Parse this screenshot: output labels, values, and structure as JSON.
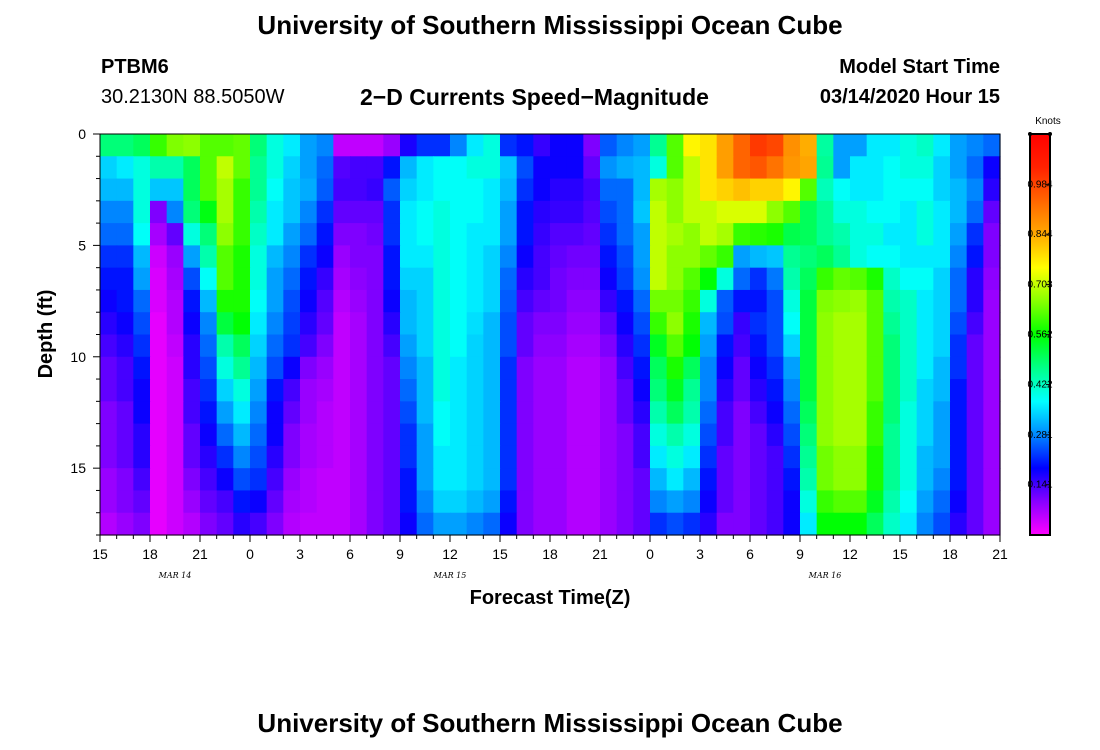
{
  "header": {
    "title": "University of Southern Mississippi Ocean Cube",
    "station": "PTBM6",
    "coords": "30.2130N 88.5050W",
    "subtitle": "2−D Currents Speed−Magnitude",
    "model_start_label": "Model Start Time",
    "model_start_value": "03/14/2020 Hour 15"
  },
  "footer": {
    "title": "University of Southern Mississippi Ocean Cube"
  },
  "chart_data": {
    "type": "heatmap",
    "title": "2−D Currents Speed−Magnitude",
    "xlabel": "Forecast Time(Z)",
    "ylabel": "Depth (ft)",
    "x_hours_range": [
      0,
      54
    ],
    "y_range": [
      0,
      18
    ],
    "y_inverted": true,
    "x_tick_labels": [
      "15",
      "18",
      "21",
      "0",
      "3",
      "6",
      "9",
      "12",
      "15",
      "18",
      "21",
      "0",
      "3",
      "6",
      "9",
      "12",
      "15",
      "18",
      "21"
    ],
    "y_tick_values": [
      0,
      5,
      10,
      15
    ],
    "y_tick_labels": [
      "0",
      "5",
      "10",
      "15"
    ],
    "date_labels": [
      {
        "label": "MAR  14",
        "hour": 4.5
      },
      {
        "label": "MAR  15",
        "hour": 21
      },
      {
        "label": "MAR  16",
        "hour": 43.5
      }
    ],
    "colorbar": {
      "title": "Knots",
      "min": 0.0,
      "max": 1.125,
      "tick_values": [
        0.141,
        0.281,
        0.422,
        0.562,
        0.703,
        0.844,
        0.984
      ],
      "tick_labels": [
        "0.141",
        "0.281",
        "0.422",
        "0.562",
        "0.703",
        "0.844",
        "0.984"
      ],
      "colors": [
        "#ff00ff",
        "#8800ff",
        "#0000ff",
        "#0088ff",
        "#00ffff",
        "#00ff88",
        "#00ff00",
        "#88ff00",
        "#ffff00",
        "#ffaa00",
        "#ff6600",
        "#ff2200",
        "#ff0000"
      ]
    },
    "depth_levels_ft": [
      0.5,
      1.5,
      2.5,
      3.5,
      4.5,
      5.5,
      6.5,
      7.5,
      8.5,
      9.5,
      10.5,
      11.5,
      12.5,
      13.5,
      14.5,
      15.5,
      16.5,
      17.5
    ],
    "time_hours": [
      0,
      1,
      2,
      3,
      4,
      5,
      6,
      7,
      8,
      9,
      10,
      11,
      12,
      13,
      14,
      15,
      16,
      17,
      18,
      19,
      20,
      21,
      22,
      23,
      24,
      25,
      26,
      27,
      28,
      29,
      30,
      31,
      32,
      33,
      34,
      35,
      36,
      37,
      38,
      39,
      40,
      41,
      42,
      43,
      44,
      45,
      46,
      47,
      48,
      49,
      50,
      51,
      52,
      53
    ],
    "speed_knots": [
      [
        0.48,
        0.48,
        0.5,
        0.6,
        0.65,
        0.66,
        0.62,
        0.62,
        0.63,
        0.48,
        0.4,
        0.36,
        0.3,
        0.28,
        0.05,
        0.05,
        0.05,
        0.08,
        0.17,
        0.22,
        0.22,
        0.28,
        0.36,
        0.4,
        0.22,
        0.2,
        0.15,
        0.18,
        0.18,
        0.1,
        0.25,
        0.28,
        0.3,
        0.46,
        0.62,
        0.76,
        0.78,
        0.86,
        0.94,
        1.0,
        0.98,
        0.88,
        0.84,
        0.45,
        0.3,
        0.3,
        0.36,
        0.36,
        0.4,
        0.42,
        0.36,
        0.3,
        0.28,
        0.26
      ],
      [
        0.34,
        0.36,
        0.4,
        0.44,
        0.44,
        0.5,
        0.62,
        0.7,
        0.63,
        0.46,
        0.4,
        0.34,
        0.3,
        0.26,
        0.13,
        0.14,
        0.14,
        0.2,
        0.32,
        0.36,
        0.38,
        0.38,
        0.4,
        0.4,
        0.33,
        0.24,
        0.18,
        0.18,
        0.18,
        0.12,
        0.29,
        0.31,
        0.32,
        0.4,
        0.62,
        0.7,
        0.78,
        0.86,
        0.94,
        0.96,
        0.92,
        0.87,
        0.85,
        0.46,
        0.3,
        0.36,
        0.36,
        0.38,
        0.4,
        0.4,
        0.34,
        0.3,
        0.26,
        0.18
      ],
      [
        0.32,
        0.32,
        0.4,
        0.33,
        0.33,
        0.5,
        0.62,
        0.68,
        0.6,
        0.46,
        0.38,
        0.33,
        0.31,
        0.25,
        0.14,
        0.14,
        0.15,
        0.25,
        0.34,
        0.36,
        0.38,
        0.38,
        0.38,
        0.36,
        0.32,
        0.22,
        0.18,
        0.16,
        0.16,
        0.14,
        0.26,
        0.26,
        0.32,
        0.68,
        0.66,
        0.7,
        0.78,
        0.8,
        0.82,
        0.8,
        0.8,
        0.76,
        0.62,
        0.43,
        0.38,
        0.36,
        0.36,
        0.38,
        0.38,
        0.38,
        0.34,
        0.32,
        0.28,
        0.16
      ],
      [
        0.28,
        0.28,
        0.4,
        0.1,
        0.28,
        0.48,
        0.55,
        0.68,
        0.6,
        0.44,
        0.36,
        0.33,
        0.28,
        0.22,
        0.12,
        0.12,
        0.12,
        0.22,
        0.36,
        0.38,
        0.4,
        0.38,
        0.38,
        0.36,
        0.3,
        0.2,
        0.16,
        0.15,
        0.15,
        0.13,
        0.24,
        0.26,
        0.33,
        0.7,
        0.66,
        0.7,
        0.7,
        0.72,
        0.72,
        0.72,
        0.66,
        0.62,
        0.5,
        0.46,
        0.4,
        0.4,
        0.38,
        0.38,
        0.36,
        0.4,
        0.36,
        0.32,
        0.26,
        0.12
      ],
      [
        0.26,
        0.26,
        0.38,
        0.07,
        0.12,
        0.4,
        0.48,
        0.66,
        0.6,
        0.42,
        0.36,
        0.3,
        0.26,
        0.2,
        0.1,
        0.1,
        0.11,
        0.22,
        0.36,
        0.38,
        0.4,
        0.38,
        0.36,
        0.36,
        0.3,
        0.2,
        0.15,
        0.13,
        0.13,
        0.12,
        0.22,
        0.26,
        0.3,
        0.7,
        0.68,
        0.66,
        0.7,
        0.68,
        0.6,
        0.59,
        0.58,
        0.51,
        0.5,
        0.46,
        0.44,
        0.4,
        0.4,
        0.36,
        0.36,
        0.4,
        0.36,
        0.3,
        0.22,
        0.1
      ],
      [
        0.22,
        0.22,
        0.32,
        0.04,
        0.08,
        0.3,
        0.44,
        0.62,
        0.58,
        0.4,
        0.32,
        0.28,
        0.22,
        0.18,
        0.08,
        0.1,
        0.1,
        0.2,
        0.36,
        0.36,
        0.4,
        0.38,
        0.36,
        0.34,
        0.28,
        0.18,
        0.14,
        0.12,
        0.11,
        0.11,
        0.2,
        0.24,
        0.3,
        0.7,
        0.66,
        0.66,
        0.63,
        0.6,
        0.3,
        0.32,
        0.33,
        0.46,
        0.48,
        0.5,
        0.46,
        0.4,
        0.38,
        0.38,
        0.36,
        0.36,
        0.36,
        0.28,
        0.2,
        0.1
      ],
      [
        0.2,
        0.2,
        0.3,
        0.03,
        0.07,
        0.24,
        0.38,
        0.62,
        0.58,
        0.4,
        0.3,
        0.26,
        0.2,
        0.15,
        0.07,
        0.09,
        0.1,
        0.2,
        0.34,
        0.34,
        0.4,
        0.38,
        0.36,
        0.34,
        0.26,
        0.16,
        0.14,
        0.11,
        0.1,
        0.1,
        0.18,
        0.23,
        0.29,
        0.7,
        0.66,
        0.62,
        0.56,
        0.4,
        0.26,
        0.22,
        0.27,
        0.44,
        0.5,
        0.6,
        0.63,
        0.62,
        0.58,
        0.42,
        0.38,
        0.38,
        0.34,
        0.26,
        0.16,
        0.09
      ],
      [
        0.18,
        0.2,
        0.26,
        0.03,
        0.06,
        0.2,
        0.32,
        0.58,
        0.58,
        0.38,
        0.3,
        0.24,
        0.18,
        0.13,
        0.06,
        0.08,
        0.1,
        0.18,
        0.32,
        0.34,
        0.4,
        0.38,
        0.36,
        0.34,
        0.25,
        0.14,
        0.12,
        0.11,
        0.09,
        0.09,
        0.15,
        0.2,
        0.26,
        0.64,
        0.64,
        0.6,
        0.4,
        0.25,
        0.2,
        0.2,
        0.24,
        0.4,
        0.52,
        0.65,
        0.66,
        0.67,
        0.62,
        0.44,
        0.42,
        0.36,
        0.34,
        0.26,
        0.16,
        0.08
      ],
      [
        0.16,
        0.18,
        0.24,
        0.02,
        0.06,
        0.18,
        0.28,
        0.52,
        0.56,
        0.36,
        0.28,
        0.23,
        0.16,
        0.12,
        0.05,
        0.07,
        0.1,
        0.16,
        0.32,
        0.34,
        0.4,
        0.38,
        0.35,
        0.32,
        0.24,
        0.12,
        0.1,
        0.1,
        0.08,
        0.08,
        0.12,
        0.18,
        0.24,
        0.6,
        0.66,
        0.58,
        0.32,
        0.24,
        0.15,
        0.22,
        0.24,
        0.38,
        0.52,
        0.66,
        0.68,
        0.68,
        0.62,
        0.46,
        0.42,
        0.36,
        0.34,
        0.24,
        0.14,
        0.08
      ],
      [
        0.14,
        0.16,
        0.22,
        0.02,
        0.05,
        0.16,
        0.26,
        0.44,
        0.5,
        0.34,
        0.26,
        0.22,
        0.14,
        0.1,
        0.05,
        0.07,
        0.1,
        0.14,
        0.3,
        0.34,
        0.4,
        0.38,
        0.34,
        0.32,
        0.24,
        0.12,
        0.09,
        0.09,
        0.07,
        0.07,
        0.1,
        0.16,
        0.22,
        0.54,
        0.62,
        0.56,
        0.3,
        0.2,
        0.14,
        0.2,
        0.24,
        0.34,
        0.52,
        0.66,
        0.68,
        0.68,
        0.62,
        0.48,
        0.42,
        0.36,
        0.34,
        0.22,
        0.12,
        0.08
      ],
      [
        0.12,
        0.14,
        0.2,
        0.02,
        0.04,
        0.16,
        0.24,
        0.4,
        0.46,
        0.32,
        0.24,
        0.18,
        0.1,
        0.08,
        0.05,
        0.07,
        0.1,
        0.12,
        0.28,
        0.32,
        0.4,
        0.36,
        0.34,
        0.32,
        0.22,
        0.1,
        0.08,
        0.08,
        0.06,
        0.06,
        0.08,
        0.14,
        0.2,
        0.5,
        0.58,
        0.5,
        0.28,
        0.18,
        0.12,
        0.18,
        0.22,
        0.3,
        0.52,
        0.66,
        0.68,
        0.68,
        0.62,
        0.48,
        0.42,
        0.36,
        0.32,
        0.22,
        0.12,
        0.08
      ],
      [
        0.12,
        0.14,
        0.18,
        0.02,
        0.04,
        0.14,
        0.22,
        0.34,
        0.4,
        0.3,
        0.2,
        0.14,
        0.08,
        0.07,
        0.05,
        0.07,
        0.1,
        0.12,
        0.26,
        0.32,
        0.4,
        0.36,
        0.34,
        0.32,
        0.22,
        0.1,
        0.08,
        0.08,
        0.06,
        0.06,
        0.08,
        0.12,
        0.18,
        0.48,
        0.54,
        0.46,
        0.28,
        0.16,
        0.12,
        0.16,
        0.2,
        0.28,
        0.52,
        0.66,
        0.68,
        0.68,
        0.62,
        0.48,
        0.42,
        0.34,
        0.32,
        0.2,
        0.12,
        0.08
      ],
      [
        0.1,
        0.12,
        0.18,
        0.02,
        0.04,
        0.14,
        0.2,
        0.3,
        0.36,
        0.28,
        0.18,
        0.12,
        0.08,
        0.06,
        0.05,
        0.07,
        0.1,
        0.12,
        0.24,
        0.32,
        0.38,
        0.36,
        0.34,
        0.32,
        0.22,
        0.1,
        0.08,
        0.08,
        0.06,
        0.06,
        0.08,
        0.12,
        0.16,
        0.44,
        0.5,
        0.44,
        0.26,
        0.14,
        0.1,
        0.14,
        0.18,
        0.26,
        0.5,
        0.66,
        0.68,
        0.68,
        0.6,
        0.48,
        0.4,
        0.34,
        0.3,
        0.2,
        0.12,
        0.08
      ],
      [
        0.1,
        0.12,
        0.16,
        0.02,
        0.04,
        0.12,
        0.18,
        0.26,
        0.32,
        0.26,
        0.18,
        0.1,
        0.07,
        0.06,
        0.05,
        0.07,
        0.1,
        0.12,
        0.22,
        0.3,
        0.38,
        0.36,
        0.34,
        0.32,
        0.22,
        0.1,
        0.08,
        0.08,
        0.06,
        0.06,
        0.08,
        0.1,
        0.14,
        0.4,
        0.44,
        0.4,
        0.24,
        0.14,
        0.1,
        0.12,
        0.16,
        0.24,
        0.48,
        0.66,
        0.68,
        0.68,
        0.6,
        0.46,
        0.4,
        0.34,
        0.3,
        0.2,
        0.12,
        0.08
      ],
      [
        0.1,
        0.12,
        0.16,
        0.02,
        0.04,
        0.12,
        0.16,
        0.22,
        0.28,
        0.24,
        0.16,
        0.1,
        0.07,
        0.06,
        0.05,
        0.07,
        0.1,
        0.12,
        0.22,
        0.3,
        0.36,
        0.36,
        0.34,
        0.32,
        0.22,
        0.1,
        0.08,
        0.08,
        0.06,
        0.06,
        0.08,
        0.1,
        0.14,
        0.36,
        0.4,
        0.36,
        0.22,
        0.12,
        0.1,
        0.12,
        0.14,
        0.22,
        0.46,
        0.64,
        0.66,
        0.66,
        0.58,
        0.46,
        0.4,
        0.32,
        0.3,
        0.2,
        0.12,
        0.08
      ],
      [
        0.08,
        0.1,
        0.14,
        0.02,
        0.04,
        0.1,
        0.14,
        0.18,
        0.24,
        0.22,
        0.14,
        0.08,
        0.06,
        0.05,
        0.05,
        0.07,
        0.1,
        0.12,
        0.2,
        0.3,
        0.36,
        0.36,
        0.34,
        0.32,
        0.22,
        0.1,
        0.08,
        0.08,
        0.06,
        0.06,
        0.08,
        0.1,
        0.12,
        0.32,
        0.36,
        0.32,
        0.2,
        0.12,
        0.1,
        0.12,
        0.14,
        0.2,
        0.44,
        0.64,
        0.66,
        0.66,
        0.58,
        0.46,
        0.4,
        0.32,
        0.28,
        0.2,
        0.12,
        0.08
      ],
      [
        0.08,
        0.1,
        0.12,
        0.02,
        0.04,
        0.08,
        0.12,
        0.14,
        0.2,
        0.18,
        0.12,
        0.07,
        0.06,
        0.05,
        0.05,
        0.07,
        0.1,
        0.12,
        0.2,
        0.28,
        0.34,
        0.34,
        0.32,
        0.3,
        0.2,
        0.1,
        0.08,
        0.08,
        0.06,
        0.06,
        0.08,
        0.1,
        0.12,
        0.28,
        0.3,
        0.28,
        0.18,
        0.12,
        0.1,
        0.12,
        0.14,
        0.18,
        0.4,
        0.6,
        0.62,
        0.62,
        0.54,
        0.44,
        0.38,
        0.3,
        0.26,
        0.18,
        0.12,
        0.08
      ],
      [
        0.06,
        0.08,
        0.1,
        0.02,
        0.04,
        0.06,
        0.1,
        0.12,
        0.16,
        0.14,
        0.1,
        0.06,
        0.05,
        0.05,
        0.05,
        0.07,
        0.1,
        0.12,
        0.18,
        0.26,
        0.3,
        0.3,
        0.28,
        0.26,
        0.18,
        0.1,
        0.08,
        0.08,
        0.06,
        0.06,
        0.08,
        0.1,
        0.12,
        0.22,
        0.24,
        0.22,
        0.16,
        0.1,
        0.1,
        0.12,
        0.14,
        0.18,
        0.36,
        0.56,
        0.56,
        0.56,
        0.5,
        0.42,
        0.36,
        0.28,
        0.24,
        0.16,
        0.12,
        0.08
      ]
    ]
  }
}
